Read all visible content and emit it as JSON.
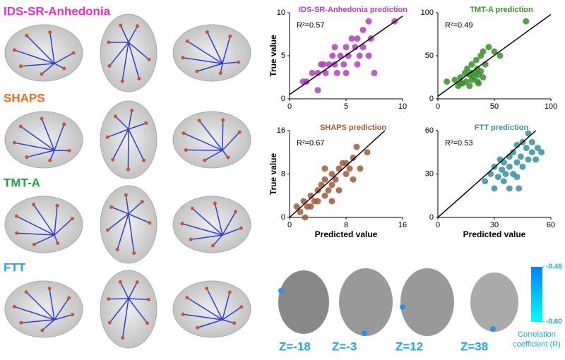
{
  "chart_data": [
    {
      "type": "scatter",
      "title": "IDS-SR-Anhedonia prediction",
      "color": "#b040c0",
      "annotation": "R²=0.57",
      "y_label": "True value",
      "xlim": [
        0,
        10
      ],
      "ylim": [
        0,
        10
      ],
      "xticks": [
        0,
        5,
        10
      ],
      "yticks": [
        0,
        5,
        10
      ],
      "x": [
        1.2,
        1.5,
        2,
        2.5,
        2.8,
        3,
        3.2,
        3.5,
        3.8,
        4,
        4,
        4.2,
        4.5,
        4.8,
        5,
        5,
        5.2,
        5.5,
        5.8,
        6,
        6,
        6.2,
        6.5,
        6.5,
        7,
        7,
        7.2,
        7.5,
        9.3,
        2.5
      ],
      "values": [
        2,
        2,
        3,
        3,
        4,
        4,
        3,
        4,
        5,
        4,
        6,
        3,
        5,
        4,
        6,
        3,
        5,
        7,
        6,
        4,
        7,
        5,
        8,
        6,
        9,
        5,
        7,
        3,
        9,
        1
      ],
      "fit_line": {
        "x": [
          0,
          10
        ],
        "y": [
          0.5,
          9.6
        ]
      }
    },
    {
      "type": "scatter",
      "title": "TMT-A prediction",
      "color": "#3a8f2a",
      "annotation": "R²=0.49",
      "xlim": [
        0,
        100
      ],
      "ylim": [
        0,
        100
      ],
      "xticks": [
        0,
        50,
        100
      ],
      "yticks": [
        0,
        50,
        100
      ],
      "x": [
        8,
        15,
        18,
        20,
        22,
        24,
        25,
        26,
        28,
        28,
        30,
        30,
        32,
        33,
        34,
        35,
        35,
        36,
        38,
        38,
        40,
        40,
        42,
        45,
        50,
        55,
        78,
        20,
        30,
        36
      ],
      "values": [
        20,
        22,
        15,
        25,
        18,
        30,
        20,
        35,
        28,
        15,
        40,
        22,
        25,
        30,
        45,
        20,
        35,
        28,
        50,
        32,
        55,
        25,
        40,
        60,
        55,
        50,
        90,
        18,
        30,
        18
      ],
      "fit_line": {
        "x": [
          0,
          100
        ],
        "y": [
          3,
          98
        ]
      }
    },
    {
      "type": "scatter",
      "title": "SHAPS prediction",
      "color": "#a05a3a",
      "annotation": "R²=0.67",
      "x_label": "Predicted value",
      "y_label": "True value",
      "xlim": [
        0,
        16
      ],
      "ylim": [
        0,
        16
      ],
      "xticks": [
        0,
        8,
        16
      ],
      "yticks": [
        0,
        8,
        16
      ],
      "x": [
        1,
        1.5,
        2,
        2.2,
        2.5,
        3,
        3,
        3.5,
        4,
        4,
        4.5,
        5,
        5,
        5.5,
        6,
        6,
        6.5,
        7,
        7.5,
        7,
        8,
        8,
        8.5,
        9,
        9,
        9.5,
        10,
        11,
        6,
        5
      ],
      "values": [
        2,
        1,
        3,
        0,
        2,
        4,
        2,
        3,
        5,
        3,
        6,
        4,
        7,
        5,
        6,
        8,
        7,
        9,
        10,
        5,
        8,
        10,
        9,
        11,
        7,
        13,
        9,
        12,
        3,
        9
      ],
      "fit_line": {
        "x": [
          0,
          13.5
        ],
        "y": [
          0,
          16
        ]
      }
    },
    {
      "type": "scatter",
      "title": "FTT prediction",
      "color": "#3a8fa0",
      "annotation": "R²=0.53",
      "x_label": "Predicted value",
      "xlim": [
        0,
        60
      ],
      "ylim": [
        0,
        60
      ],
      "xticks": [
        0,
        30,
        60
      ],
      "yticks": [
        0,
        30,
        60
      ],
      "x": [
        25,
        28,
        30,
        30,
        32,
        33,
        34,
        35,
        35,
        36,
        38,
        38,
        40,
        40,
        42,
        42,
        43,
        44,
        45,
        45,
        47,
        48,
        48,
        50,
        50,
        52,
        53,
        55,
        42,
        38
      ],
      "values": [
        25,
        30,
        20,
        35,
        28,
        40,
        33,
        25,
        38,
        30,
        42,
        35,
        45,
        30,
        38,
        50,
        20,
        42,
        52,
        35,
        48,
        40,
        58,
        45,
        52,
        40,
        48,
        45,
        28,
        20
      ],
      "fit_line": {
        "x": [
          0,
          52
        ],
        "y": [
          0,
          60
        ]
      }
    }
  ],
  "brain_labels": [
    "IDS-SR-Anhedonia",
    "SHAPS",
    "TMT-A",
    "FTT"
  ],
  "slices": [
    "Z=-18",
    "Z=-3",
    "Z=12",
    "Z=38"
  ],
  "colorbar": {
    "ticks": [
      -0.46,
      {
        "value": -0.6,
        "label": "-0.60"
      }
    ],
    "title": [
      "Correlation",
      "coefficient (R)"
    ]
  }
}
